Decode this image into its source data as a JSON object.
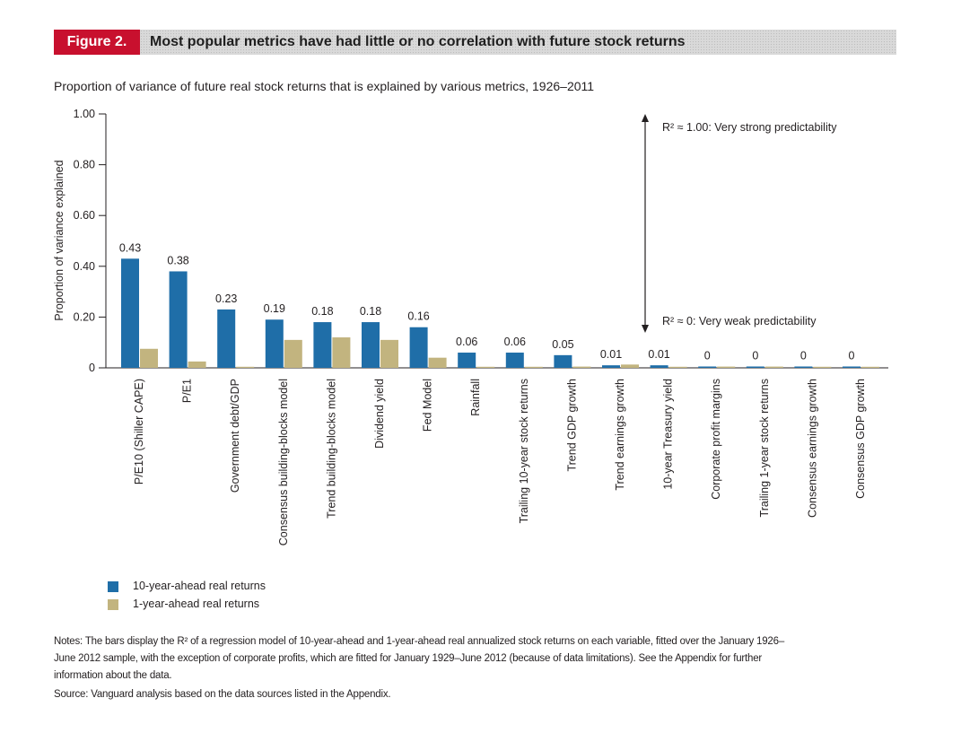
{
  "figure": {
    "tag": "Figure 2.",
    "title": "Most popular metrics have had little or no correlation with future stock returns",
    "tag_color": "#c8102e"
  },
  "chart_data": {
    "type": "bar",
    "title": "Proportion of variance of future real stock returns that is explained by various metrics, 1926–2011",
    "xlabel": "",
    "ylabel": "Proportion of variance explained",
    "ylim": [
      0,
      1.0
    ],
    "yticks": [
      "0",
      "0.20",
      "0.40",
      "0.60",
      "0.80",
      "1.00"
    ],
    "categories": [
      "P/E10 (Shiller CAPE)",
      "P/E1",
      "Government debt/GDP",
      "Consensus building-blocks model",
      "Trend building-blocks model",
      "Dividend yield",
      "Fed Model",
      "Rainfall",
      "Trailing 10-year stock returns",
      "Trend GDP growth",
      "Trend earnings growth",
      "10-year Treasury yield",
      "Corporate profit margins",
      "Trailing 1-year stock returns",
      "Consensus earnings growth",
      "Consensus GDP growth"
    ],
    "series": [
      {
        "name": "10-year-ahead real returns",
        "color": "#1f6ea8",
        "values": [
          0.43,
          0.38,
          0.23,
          0.19,
          0.18,
          0.18,
          0.16,
          0.06,
          0.06,
          0.05,
          0.01,
          0.01,
          0,
          0,
          0,
          0
        ]
      },
      {
        "name": "1-year-ahead real returns",
        "color": "#c2b47f",
        "values": [
          0.075,
          0.025,
          0.004,
          0.11,
          0.12,
          0.11,
          0.04,
          0,
          0,
          0.005,
          0.013,
          0,
          0.005,
          0.005,
          0.003,
          0.002
        ]
      }
    ],
    "data_labels": [
      "0.43",
      "0.38",
      "0.23",
      "0.19",
      "0.18",
      "0.18",
      "0.16",
      "0.06",
      "0.06",
      "0.05",
      "0.01",
      "0.01",
      "0",
      "0",
      "0",
      "0"
    ],
    "annotations": {
      "top": "R² ≈ 1.00: Very strong predictability",
      "bottom": "R² ≈ 0: Very weak predictability"
    },
    "legend_position": "bottom-left",
    "grid": false
  },
  "notes": "Notes: The bars display the R² of a regression model of 10-year-ahead and 1-year-ahead real annualized stock returns on each variable, fitted over the January 1926–June 2012 sample, with the exception of corporate profits, which are fitted for January 1929–June 2012 (because of data limitations). See the Appendix for further information about the data.",
  "source": "Source: Vanguard analysis based on the data sources listed in the Appendix."
}
